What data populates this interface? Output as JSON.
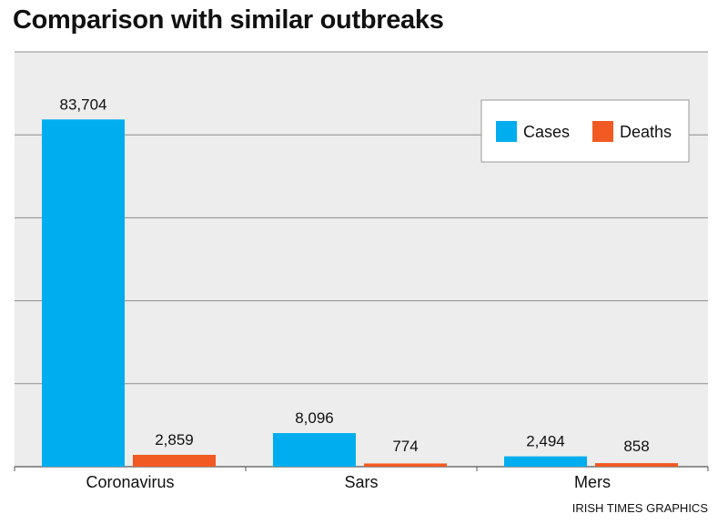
{
  "title": "Comparison with similar outbreaks",
  "credit": "IRISH TIMES GRAPHICS",
  "chart_data": {
    "type": "bar",
    "title": "Comparison with similar outbreaks",
    "categories": [
      "Coronavirus",
      "Sars",
      "Mers"
    ],
    "series": [
      {
        "name": "Cases",
        "values": [
          83704,
          8096,
          2494
        ],
        "labels": [
          "83,704",
          "8,096",
          "2,494"
        ],
        "color": "#00aeef"
      },
      {
        "name": "Deaths",
        "values": [
          2859,
          774,
          858
        ],
        "labels": [
          "2,859",
          "774",
          "858"
        ],
        "color": "#f15a22"
      }
    ],
    "xlabel": "",
    "ylabel": "",
    "ylim": [
      0,
      100000
    ],
    "grid": true,
    "legend": "top-right",
    "background": "#ededed"
  }
}
